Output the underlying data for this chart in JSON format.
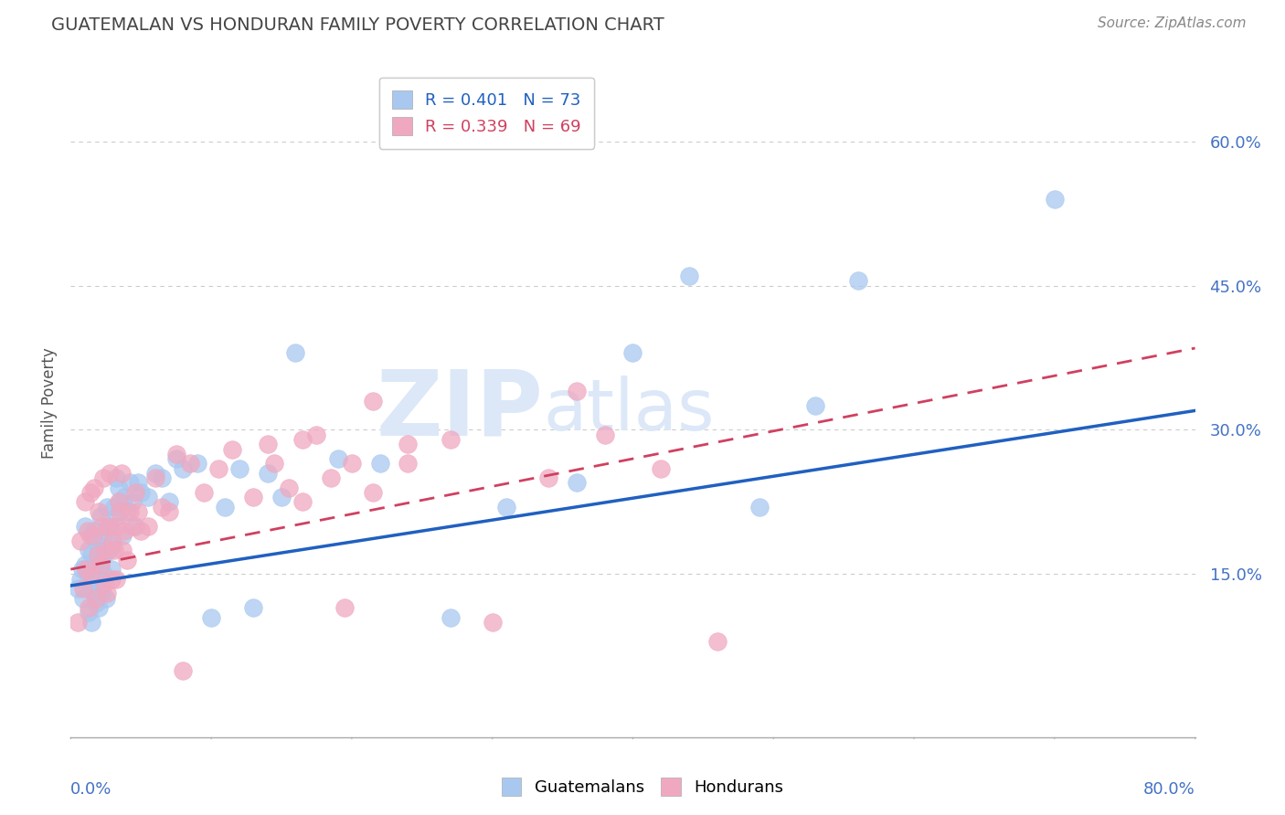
{
  "title": "GUATEMALAN VS HONDURAN FAMILY POVERTY CORRELATION CHART",
  "source": "Source: ZipAtlas.com",
  "ylabel": "Family Poverty",
  "xlim": [
    0.0,
    0.8
  ],
  "ylim": [
    -0.02,
    0.675
  ],
  "yticks": [
    0.0,
    0.15,
    0.3,
    0.45,
    0.6
  ],
  "ytick_labels": [
    "",
    "15.0%",
    "30.0%",
    "45.0%",
    "60.0%"
  ],
  "guatemalan_R": 0.401,
  "guatemalan_N": 73,
  "honduran_R": 0.339,
  "honduran_N": 69,
  "guatemalan_color": "#a8c8f0",
  "honduran_color": "#f0a8c0",
  "guatemalan_line_color": "#2060c0",
  "honduran_line_color": "#d04060",
  "watermark_color": "#dce8f8",
  "title_color": "#444444",
  "source_color": "#888888",
  "axis_label_color": "#4472c4",
  "grid_color": "#cccccc",
  "guatemalan_x": [
    0.005,
    0.007,
    0.008,
    0.009,
    0.01,
    0.01,
    0.012,
    0.013,
    0.013,
    0.014,
    0.015,
    0.015,
    0.015,
    0.016,
    0.017,
    0.017,
    0.018,
    0.018,
    0.019,
    0.02,
    0.02,
    0.02,
    0.021,
    0.021,
    0.022,
    0.023,
    0.023,
    0.024,
    0.025,
    0.025,
    0.026,
    0.027,
    0.028,
    0.029,
    0.03,
    0.031,
    0.032,
    0.033,
    0.034,
    0.035,
    0.037,
    0.038,
    0.04,
    0.042,
    0.044,
    0.046,
    0.048,
    0.05,
    0.055,
    0.06,
    0.065,
    0.07,
    0.075,
    0.08,
    0.09,
    0.1,
    0.11,
    0.12,
    0.13,
    0.14,
    0.15,
    0.16,
    0.19,
    0.22,
    0.27,
    0.31,
    0.36,
    0.4,
    0.44,
    0.49,
    0.53,
    0.56,
    0.7
  ],
  "guatemalan_y": [
    0.135,
    0.145,
    0.155,
    0.125,
    0.16,
    0.2,
    0.15,
    0.11,
    0.175,
    0.19,
    0.1,
    0.14,
    0.17,
    0.13,
    0.155,
    0.195,
    0.12,
    0.165,
    0.18,
    0.115,
    0.145,
    0.175,
    0.16,
    0.21,
    0.13,
    0.15,
    0.185,
    0.17,
    0.125,
    0.195,
    0.22,
    0.175,
    0.2,
    0.155,
    0.18,
    0.22,
    0.25,
    0.21,
    0.24,
    0.225,
    0.19,
    0.23,
    0.215,
    0.245,
    0.225,
    0.2,
    0.245,
    0.235,
    0.23,
    0.255,
    0.25,
    0.225,
    0.27,
    0.26,
    0.265,
    0.105,
    0.22,
    0.26,
    0.115,
    0.255,
    0.23,
    0.38,
    0.27,
    0.265,
    0.105,
    0.22,
    0.245,
    0.38,
    0.46,
    0.22,
    0.325,
    0.455,
    0.54
  ],
  "honduran_x": [
    0.005,
    0.007,
    0.009,
    0.01,
    0.011,
    0.012,
    0.013,
    0.014,
    0.015,
    0.016,
    0.017,
    0.018,
    0.019,
    0.02,
    0.021,
    0.022,
    0.023,
    0.024,
    0.025,
    0.026,
    0.027,
    0.028,
    0.029,
    0.03,
    0.031,
    0.032,
    0.033,
    0.034,
    0.035,
    0.036,
    0.037,
    0.038,
    0.04,
    0.042,
    0.044,
    0.046,
    0.048,
    0.05,
    0.055,
    0.06,
    0.065,
    0.07,
    0.075,
    0.085,
    0.095,
    0.105,
    0.115,
    0.13,
    0.145,
    0.165,
    0.195,
    0.215,
    0.24,
    0.27,
    0.3,
    0.34,
    0.38,
    0.42,
    0.46,
    0.36,
    0.14,
    0.155,
    0.165,
    0.175,
    0.185,
    0.2,
    0.215,
    0.24,
    0.08
  ],
  "honduran_y": [
    0.1,
    0.185,
    0.135,
    0.225,
    0.155,
    0.195,
    0.115,
    0.235,
    0.15,
    0.19,
    0.24,
    0.125,
    0.17,
    0.215,
    0.16,
    0.2,
    0.25,
    0.14,
    0.175,
    0.13,
    0.2,
    0.255,
    0.145,
    0.185,
    0.175,
    0.145,
    0.2,
    0.225,
    0.215,
    0.255,
    0.175,
    0.195,
    0.165,
    0.215,
    0.2,
    0.235,
    0.215,
    0.195,
    0.2,
    0.25,
    0.22,
    0.215,
    0.275,
    0.265,
    0.235,
    0.26,
    0.28,
    0.23,
    0.265,
    0.225,
    0.115,
    0.235,
    0.285,
    0.29,
    0.1,
    0.25,
    0.295,
    0.26,
    0.08,
    0.34,
    0.285,
    0.24,
    0.29,
    0.295,
    0.25,
    0.265,
    0.33,
    0.265,
    0.05
  ],
  "guat_line_x0": 0.0,
  "guat_line_y0": 0.138,
  "guat_line_x1": 0.8,
  "guat_line_y1": 0.32,
  "hond_line_x0": 0.0,
  "hond_line_y0": 0.155,
  "hond_line_x1": 0.8,
  "hond_line_y1": 0.385
}
